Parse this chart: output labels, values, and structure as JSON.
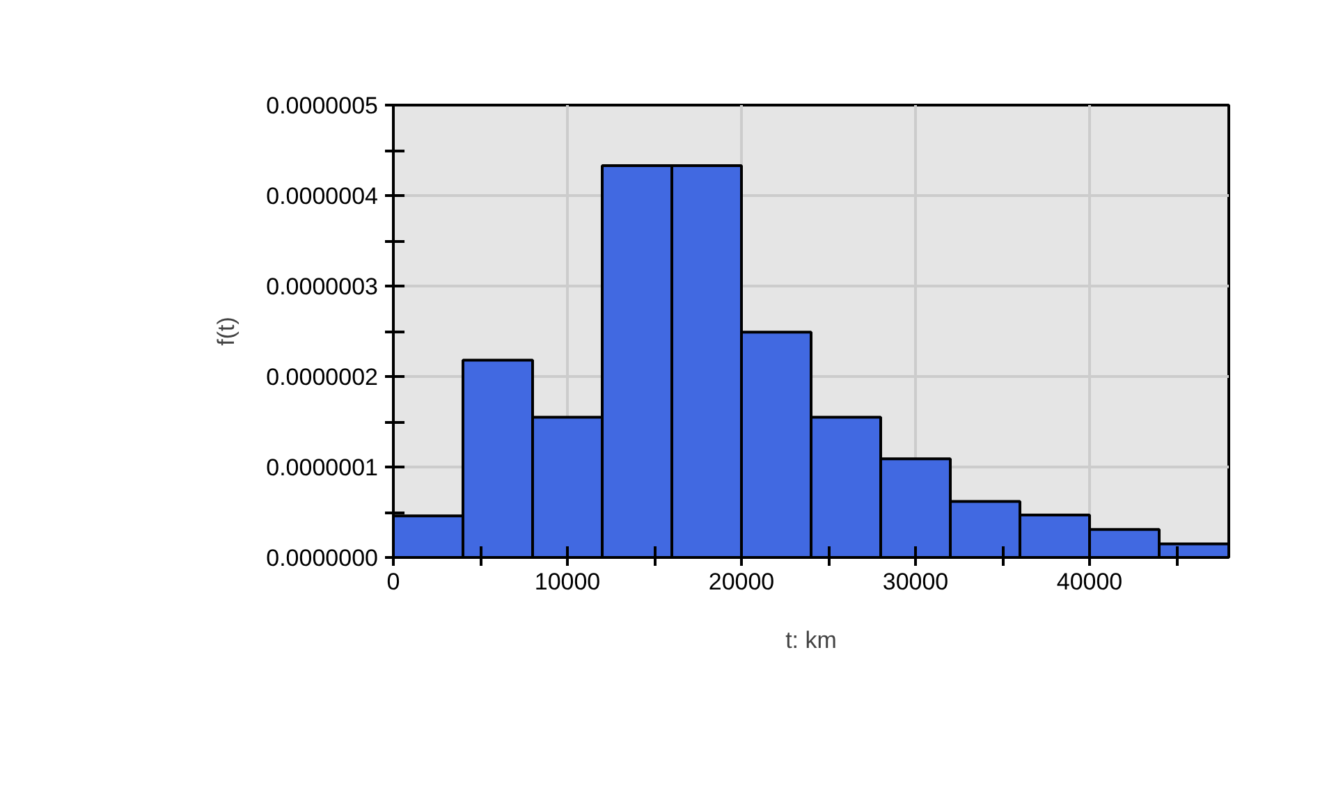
{
  "chart_data": {
    "type": "histogram",
    "xlabel": "t: km",
    "ylabel": "f(t)",
    "bins": [
      0,
      4000,
      8000,
      12000,
      16000,
      20000,
      24000,
      28000,
      32000,
      36000,
      40000,
      44000,
      48000
    ],
    "values": [
      4.6e-08,
      2.18e-07,
      1.55e-07,
      4.33e-07,
      4.33e-07,
      2.49e-07,
      1.55e-07,
      1.09e-07,
      6.2e-08,
      4.7e-08,
      3.1e-08,
      1.5e-08
    ],
    "color": "#4169e1",
    "xlim": [
      0,
      48000
    ],
    "xticks": [
      0,
      {
        "value": 5000,
        "label": null
      },
      10000,
      {
        "value": 15000,
        "label": null
      },
      20000,
      {
        "value": 25000,
        "label": null
      },
      30000,
      {
        "value": 35000,
        "label": null
      },
      40000,
      {
        "value": 45000,
        "label": null
      }
    ],
    "ylim": [
      0,
      5e-07
    ],
    "yticks": [
      {
        "value": 0,
        "label": "0.0000000"
      },
      {
        "value": 5e-08,
        "label": null
      },
      {
        "value": 1e-07,
        "label": "0.0000001"
      },
      {
        "value": 1.5e-07,
        "label": null
      },
      {
        "value": 2e-07,
        "label": "0.0000002"
      },
      {
        "value": 2.5e-07,
        "label": null
      },
      {
        "value": 3e-07,
        "label": "0.0000003"
      },
      {
        "value": 3.5e-07,
        "label": null
      },
      {
        "value": 4e-07,
        "label": "0.0000004"
      },
      {
        "value": 4.5e-07,
        "label": null
      },
      {
        "value": 5e-07,
        "label": "0.0000005"
      }
    ],
    "grid": true
  }
}
